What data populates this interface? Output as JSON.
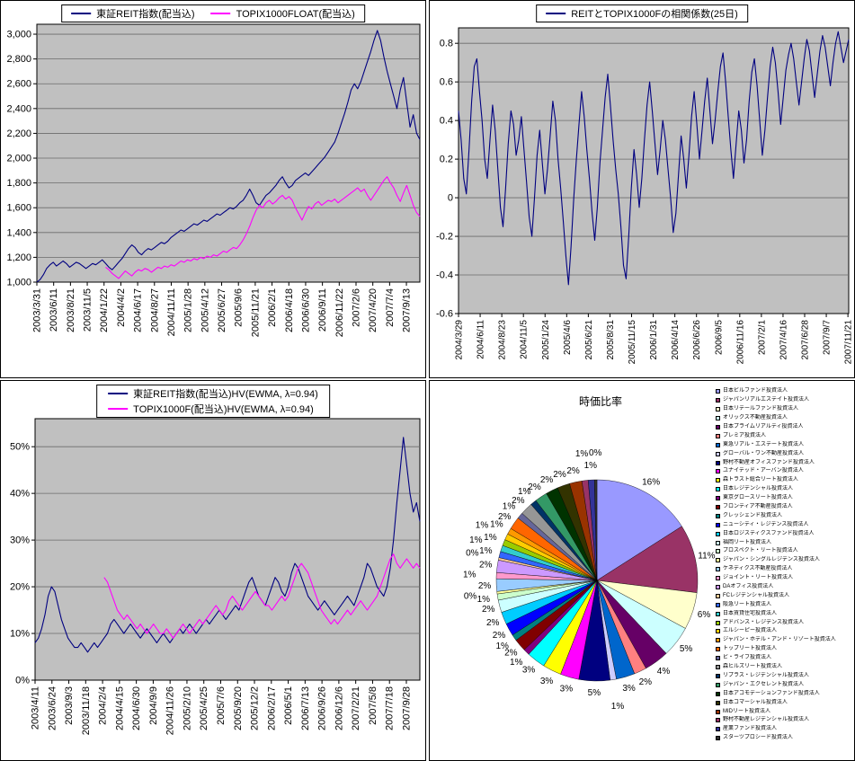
{
  "colors": {
    "plot_bg": "#C0C0C0",
    "grid": "#6b6b6b",
    "axis": "#000000",
    "navy": "#000080",
    "magenta": "#FF00FF",
    "panel_border": "#000000"
  },
  "palette": [
    "#9999FF",
    "#993366",
    "#FFFFCC",
    "#CCFFFF",
    "#660066",
    "#FF8080",
    "#0066CC",
    "#CCCCFF",
    "#000080",
    "#FF00FF",
    "#FFFF00",
    "#00FFFF",
    "#800080",
    "#800000",
    "#008080",
    "#0000FF",
    "#00CCFF",
    "#CCFFFF",
    "#CCFFCC",
    "#FFFF99",
    "#99CCFF",
    "#FF99CC",
    "#CC99FF",
    "#FFCC99",
    "#3366FF",
    "#33CCCC",
    "#99CC00",
    "#FFCC00",
    "#FF9900",
    "#FF6600",
    "#666699",
    "#969696",
    "#003366",
    "#339966",
    "#003300",
    "#333300",
    "#993300",
    "#993366",
    "#333399",
    "#333333"
  ],
  "chart_data": [
    {
      "type": "line",
      "title": "",
      "legend": [
        "東証REIT指数(配当込)",
        "TOPIX1000FLOAT(配当込)"
      ],
      "ylim": [
        1000,
        3080
      ],
      "y_tick_values": [
        1000,
        1200,
        1400,
        1600,
        1800,
        2000,
        2200,
        2400,
        2600,
        2800,
        3000
      ],
      "y_tick_labels": [
        "1,000",
        "1,200",
        "1,400",
        "1,600",
        "1,800",
        "2,000",
        "2,200",
        "2,400",
        "2,600",
        "2,800",
        "3,000"
      ],
      "x_tick_labels": [
        "2003/3/31",
        "2003/6/11",
        "2003/8/21",
        "2003/11/5",
        "2004/1/22",
        "2004/4/2",
        "2004/6/17",
        "2004/8/27",
        "2004/11/11",
        "2005/1/28",
        "2005/4/12",
        "2005/6/27",
        "2005/9/6",
        "2005/11/21",
        "2006/2/1",
        "2006/4/18",
        "2006/6/30",
        "2006/9/11",
        "2006/11/22",
        "2007/2/6",
        "2007/4/20",
        "2007/7/4",
        "2007/9/13"
      ],
      "series": [
        {
          "name": "東証REIT指数(配当込)",
          "color": "#000080",
          "values": [
            1000,
            1020,
            1060,
            1110,
            1140,
            1160,
            1130,
            1150,
            1170,
            1150,
            1120,
            1140,
            1160,
            1150,
            1130,
            1110,
            1130,
            1150,
            1140,
            1160,
            1180,
            1150,
            1120,
            1100,
            1130,
            1160,
            1190,
            1230,
            1270,
            1300,
            1280,
            1240,
            1220,
            1250,
            1270,
            1260,
            1280,
            1300,
            1320,
            1310,
            1330,
            1360,
            1380,
            1400,
            1420,
            1410,
            1430,
            1450,
            1470,
            1460,
            1480,
            1500,
            1490,
            1510,
            1530,
            1550,
            1540,
            1560,
            1580,
            1600,
            1590,
            1610,
            1640,
            1660,
            1700,
            1750,
            1700,
            1640,
            1620,
            1660,
            1700,
            1720,
            1750,
            1780,
            1820,
            1850,
            1800,
            1760,
            1780,
            1820,
            1840,
            1860,
            1880,
            1860,
            1890,
            1920,
            1950,
            1980,
            2010,
            2050,
            2090,
            2130,
            2200,
            2280,
            2360,
            2450,
            2550,
            2600,
            2560,
            2620,
            2700,
            2780,
            2860,
            2950,
            3030,
            2950,
            2820,
            2700,
            2600,
            2500,
            2400,
            2550,
            2650,
            2450,
            2250,
            2350,
            2200,
            2150
          ]
        },
        {
          "name": "TOPIX1000FLOAT(配当込)",
          "color": "#FF00FF",
          "values": [
            null,
            null,
            null,
            null,
            null,
            null,
            null,
            null,
            null,
            null,
            null,
            null,
            null,
            null,
            null,
            null,
            null,
            null,
            null,
            null,
            null,
            1120,
            1100,
            1070,
            1050,
            1030,
            1060,
            1090,
            1070,
            1050,
            1080,
            1100,
            1090,
            1110,
            1100,
            1080,
            1100,
            1120,
            1110,
            1130,
            1120,
            1140,
            1130,
            1150,
            1170,
            1160,
            1180,
            1170,
            1190,
            1180,
            1200,
            1190,
            1210,
            1200,
            1220,
            1210,
            1230,
            1250,
            1240,
            1260,
            1280,
            1270,
            1300,
            1340,
            1390,
            1450,
            1520,
            1580,
            1620,
            1600,
            1640,
            1660,
            1630,
            1650,
            1680,
            1700,
            1670,
            1690,
            1660,
            1600,
            1550,
            1500,
            1560,
            1610,
            1590,
            1630,
            1650,
            1620,
            1640,
            1660,
            1650,
            1670,
            1640,
            1660,
            1680,
            1700,
            1720,
            1740,
            1760,
            1730,
            1750,
            1700,
            1660,
            1700,
            1740,
            1780,
            1820,
            1850,
            1800,
            1760,
            1700,
            1650,
            1720,
            1780,
            1700,
            1620,
            1560,
            1530
          ]
        }
      ]
    },
    {
      "type": "line",
      "title": "REITとTOPIX1000Fの相関係数(25日)",
      "legend": [
        "REITとTOPIX1000Fの相関係数(25日)"
      ],
      "ylim": [
        -0.6,
        0.88
      ],
      "y_tick_values": [
        -0.6,
        -0.4,
        -0.2,
        0,
        0.2,
        0.4,
        0.6,
        0.8
      ],
      "y_tick_labels": [
        "-0.6",
        "-0.4",
        "-0.2",
        "0",
        "0.2",
        "0.4",
        "0.6",
        "0.8"
      ],
      "x_tick_labels": [
        "2004/3/29",
        "2004/6/11",
        "2004/8/23",
        "2004/11/5",
        "2005/1/24",
        "2005/4/6",
        "2005/6/21",
        "2005/8/31",
        "2005/11/15",
        "2006/1/31",
        "2006/4/14",
        "2006/6/26",
        "2006/9/5",
        "2006/11/16",
        "2007/2/1",
        "2007/4/16",
        "2007/6/28",
        "2007/9/7",
        "2007/11/21"
      ],
      "series": [
        {
          "name": "REITとTOPIX1000Fの相関係数(25日)",
          "color": "#000080",
          "values": [
            0.45,
            0.3,
            0.1,
            0.02,
            0.25,
            0.5,
            0.68,
            0.72,
            0.55,
            0.4,
            0.2,
            0.1,
            0.3,
            0.48,
            0.35,
            0.15,
            -0.05,
            -0.15,
            0.05,
            0.28,
            0.45,
            0.38,
            0.22,
            0.3,
            0.42,
            0.25,
            0.08,
            -0.1,
            -0.2,
            0.0,
            0.22,
            0.35,
            0.18,
            0.02,
            0.15,
            0.32,
            0.5,
            0.4,
            0.2,
            0.05,
            -0.12,
            -0.3,
            -0.45,
            -0.25,
            0.0,
            0.2,
            0.38,
            0.55,
            0.42,
            0.25,
            0.1,
            -0.08,
            -0.22,
            -0.05,
            0.18,
            0.35,
            0.52,
            0.64,
            0.48,
            0.3,
            0.15,
            0.02,
            -0.15,
            -0.35,
            -0.42,
            -0.2,
            0.05,
            0.25,
            0.12,
            -0.05,
            0.1,
            0.3,
            0.48,
            0.6,
            0.45,
            0.28,
            0.12,
            0.25,
            0.4,
            0.3,
            0.15,
            0.0,
            -0.18,
            -0.08,
            0.12,
            0.32,
            0.2,
            0.05,
            0.22,
            0.42,
            0.55,
            0.38,
            0.2,
            0.35,
            0.5,
            0.62,
            0.45,
            0.28,
            0.4,
            0.55,
            0.68,
            0.75,
            0.6,
            0.42,
            0.25,
            0.1,
            0.28,
            0.45,
            0.35,
            0.18,
            0.3,
            0.5,
            0.65,
            0.72,
            0.58,
            0.4,
            0.22,
            0.35,
            0.52,
            0.68,
            0.78,
            0.7,
            0.55,
            0.38,
            0.52,
            0.66,
            0.74,
            0.8,
            0.72,
            0.6,
            0.48,
            0.6,
            0.72,
            0.82,
            0.76,
            0.64,
            0.52,
            0.64,
            0.76,
            0.84,
            0.78,
            0.68,
            0.58,
            0.7,
            0.8,
            0.86,
            0.78,
            0.7,
            0.76,
            0.82
          ]
        }
      ]
    },
    {
      "type": "line",
      "title": "",
      "legend": [
        "東証REIT指数(配当込)HV(EWMA, λ=0.94)",
        "TOPIX1000F(配当込)HV(EWMA, λ=0.94)"
      ],
      "ylim": [
        0,
        56
      ],
      "y_tick_values": [
        0,
        10,
        20,
        30,
        40,
        50
      ],
      "y_tick_labels": [
        "0%",
        "10%",
        "20%",
        "30%",
        "40%",
        "50%"
      ],
      "x_tick_labels": [
        "2003/4/11",
        "2003/6/24",
        "2003/9/3",
        "2003/11/18",
        "2004/2/4",
        "2004/4/15",
        "2004/6/30",
        "2004/9/9",
        "2004/11/26",
        "2005/2/10",
        "2005/4/25",
        "2005/7/6",
        "2005/9/20",
        "2005/12/2",
        "2006/2/17",
        "2006/5/1",
        "2006/7/13",
        "2006/9/26",
        "2006/12/6",
        "2007/2/21",
        "2007/5/8",
        "2007/7/18",
        "2007/9/28"
      ],
      "series": [
        {
          "name": "東証REIT指数(配当込)HV(EWMA, λ=0.94)",
          "color": "#000080",
          "values": [
            8,
            9,
            11,
            14,
            18,
            20,
            19,
            16,
            13,
            11,
            9,
            8,
            7,
            7,
            8,
            7,
            6,
            7,
            8,
            7,
            8,
            9,
            10,
            12,
            13,
            12,
            11,
            10,
            11,
            12,
            11,
            10,
            9,
            10,
            11,
            10,
            9,
            8,
            9,
            10,
            9,
            8,
            9,
            10,
            11,
            10,
            11,
            12,
            11,
            10,
            11,
            12,
            13,
            12,
            13,
            14,
            15,
            14,
            13,
            14,
            15,
            16,
            15,
            17,
            19,
            21,
            22,
            20,
            18,
            17,
            16,
            18,
            20,
            22,
            21,
            19,
            18,
            20,
            23,
            25,
            24,
            22,
            20,
            18,
            17,
            16,
            15,
            16,
            17,
            16,
            15,
            14,
            15,
            16,
            17,
            18,
            17,
            16,
            18,
            20,
            22,
            25,
            24,
            22,
            20,
            19,
            18,
            20,
            24,
            30,
            38,
            45,
            52,
            46,
            40,
            36,
            38,
            34
          ]
        },
        {
          "name": "TOPIX1000F(配当込)HV(EWMA, λ=0.94)",
          "color": "#FF00FF",
          "values": [
            null,
            null,
            null,
            null,
            null,
            null,
            null,
            null,
            null,
            null,
            null,
            null,
            null,
            null,
            null,
            null,
            null,
            null,
            null,
            null,
            null,
            22,
            21,
            19,
            17,
            15,
            14,
            13,
            14,
            13,
            12,
            11,
            12,
            11,
            10,
            11,
            12,
            11,
            10,
            10,
            11,
            10,
            9,
            10,
            11,
            12,
            11,
            10,
            11,
            12,
            13,
            12,
            13,
            14,
            15,
            16,
            15,
            14,
            15,
            17,
            18,
            17,
            16,
            15,
            16,
            17,
            18,
            19,
            18,
            17,
            16,
            16,
            15,
            16,
            17,
            18,
            17,
            18,
            20,
            22,
            24,
            25,
            24,
            23,
            21,
            19,
            17,
            15,
            14,
            13,
            12,
            13,
            12,
            13,
            14,
            15,
            14,
            15,
            16,
            17,
            16,
            15,
            16,
            17,
            18,
            20,
            22,
            24,
            26,
            27,
            25,
            24,
            25,
            26,
            25,
            24,
            25,
            24
          ]
        }
      ]
    },
    {
      "type": "pie",
      "title": "時価比率",
      "slices": [
        {
          "name": "日本ビルファンド投資法人",
          "value": 16,
          "label": "16%"
        },
        {
          "name": "ジャパンリアルエステイト投資法人",
          "value": 11,
          "label": "11%"
        },
        {
          "name": "日本リテールファンド投資法人",
          "value": 6,
          "label": "6%"
        },
        {
          "name": "オリックス不動産投資法人",
          "value": 5,
          "label": "5%"
        },
        {
          "name": "日本プライムリアルティ投資法人",
          "value": 4,
          "label": "4%"
        },
        {
          "name": "プレミア投資法人",
          "value": 2,
          "label": "2%"
        },
        {
          "name": "東急リアル・エステート投資法人",
          "value": 3,
          "label": "3%"
        },
        {
          "name": "グローバル・ワン不動産投資法人",
          "value": 1,
          "label": "1%"
        },
        {
          "name": "野村不動産オフィスファンド投資法人",
          "value": 5,
          "label": "5%"
        },
        {
          "name": "ユナイテッド・アーバン投資法人",
          "value": 3,
          "label": "3%"
        },
        {
          "name": "森トラスト総合リート投資法人",
          "value": 3,
          "label": "3%"
        },
        {
          "name": "日本レジデンシャル投資法人",
          "value": 3,
          "label": "3%"
        },
        {
          "name": "東京グロースリート投資法人",
          "value": 1,
          "label": "1%"
        },
        {
          "name": "フロンティア不動産投資法人",
          "value": 2,
          "label": "2%"
        },
        {
          "name": "クレッシェンド投資法人",
          "value": 1,
          "label": "1%"
        },
        {
          "name": "ニューシティ・レジデンス投資法人",
          "value": 2,
          "label": "2%"
        },
        {
          "name": "日本ロジスティクスファンド投資法人",
          "value": 2,
          "label": "2%"
        },
        {
          "name": "福岡リート投資法人",
          "value": 2,
          "label": "2%"
        },
        {
          "name": "プロスペクト・リート投資法人",
          "value": 1,
          "label": "1%"
        },
        {
          "name": "ジャパン・シングルレジデンス投資法人",
          "value": 0.4,
          "label": "0%"
        },
        {
          "name": "ケネディクス不動産投資法人",
          "value": 2,
          "label": "2%"
        },
        {
          "name": "ジョイント・リート投資法人",
          "value": 1,
          "label": "1%"
        },
        {
          "name": "DAオフィス投資法人",
          "value": 2,
          "label": "2%"
        },
        {
          "name": "FCレジデンシャル投資法人",
          "value": 0.4,
          "label": "0%"
        },
        {
          "name": "阪急リート投資法人",
          "value": 1,
          "label": "1%"
        },
        {
          "name": "日本賃貸住宅投資法人",
          "value": 1,
          "label": "1%"
        },
        {
          "name": "アドバンス・レジデンス投資法人",
          "value": 1,
          "label": "1%"
        },
        {
          "name": "エルシーピー投資法人",
          "value": 1,
          "label": "1%"
        },
        {
          "name": "ジャパン・ホテル・アンド・リゾート投資法人",
          "value": 1,
          "label": "1%"
        },
        {
          "name": "トップリート投資法人",
          "value": 2,
          "label": "2%"
        },
        {
          "name": "ビ・ライフ投資法人",
          "value": 1,
          "label": "1%"
        },
        {
          "name": "森ヒルズリート投資法人",
          "value": 2,
          "label": "2%"
        },
        {
          "name": "リプラス・レジデンシャル投資法人",
          "value": 1,
          "label": "1%"
        },
        {
          "name": "ジャパン・エクセレント投資法人",
          "value": 2,
          "label": "2%"
        },
        {
          "name": "日本アコモデーションファンド投資法人",
          "value": 2,
          "label": "2%"
        },
        {
          "name": "日本コマーシャル投資法人",
          "value": 2,
          "label": "2%"
        },
        {
          "name": "MIDリート投資法人",
          "value": 2,
          "label": "2%"
        },
        {
          "name": "野村不動産レジデンシャル投資法人",
          "value": 1,
          "label": "1%"
        },
        {
          "name": "産業ファンド投資法人",
          "value": 1,
          "label": "1%"
        },
        {
          "name": "スターツプロシード投資法人",
          "value": 0.4,
          "label": "0%"
        }
      ]
    }
  ]
}
